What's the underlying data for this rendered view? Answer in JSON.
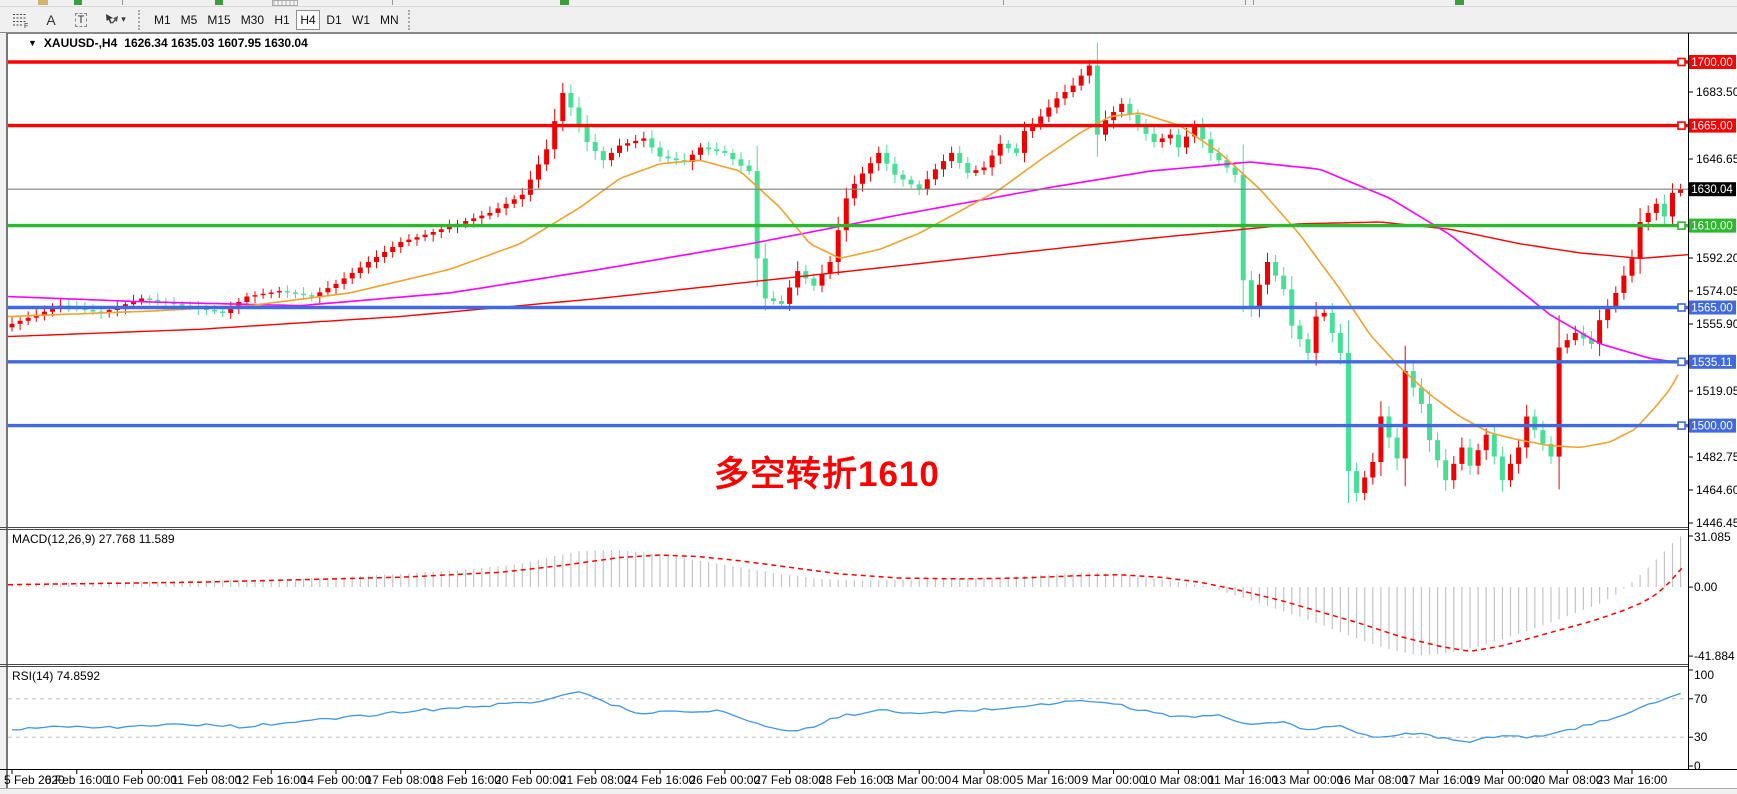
{
  "icons": {
    "dropdown": "▼",
    "caret": "▾",
    "tool_a": "A",
    "tool_t": "T",
    "tool_f": "F"
  },
  "toolbar": {
    "tools": [
      "fibonacci-tool",
      "arrow-text-tool",
      "text-tool",
      "arrows-tool"
    ],
    "timeframes": [
      "M1",
      "M5",
      "M15",
      "M30",
      "H1",
      "H4",
      "D1",
      "W1",
      "MN"
    ],
    "active_timeframe": "H4"
  },
  "chart": {
    "symbol_period": "XAUUSD-,H4",
    "ohlc": "1626.34 1635.03 1607.95 1630.04",
    "annotation": "多空转折1610"
  },
  "chart_data": {
    "type": "candlestick",
    "symbol": "XAUUSD",
    "timeframe": "H4",
    "ohlc_display": {
      "open": 1626.34,
      "high": 1635.03,
      "low": 1607.95,
      "close": 1630.04
    },
    "y_range": [
      1444.25,
      1715.4
    ],
    "y_ticks": [
      {
        "label": "1683.50",
        "price": 1683.5
      },
      {
        "label": "1646.65",
        "price": 1646.65
      },
      {
        "label": "1592.20",
        "price": 1592.2
      },
      {
        "label": "1574.05",
        "price": 1574.05
      },
      {
        "label": "1555.90",
        "price": 1555.9
      },
      {
        "label": "1519.05",
        "price": 1519.05
      },
      {
        "label": "1482.75",
        "price": 1482.75
      },
      {
        "label": "1464.60",
        "price": 1464.6
      },
      {
        "label": "1446.45",
        "price": 1446.45
      }
    ],
    "hlines": [
      {
        "price": 1700.0,
        "label": "1700.00",
        "color": "red"
      },
      {
        "price": 1665.0,
        "label": "1665.00",
        "color": "red"
      },
      {
        "price": 1610.0,
        "label": "1610.00",
        "color": "green"
      },
      {
        "price": 1565.0,
        "label": "1565.00",
        "color": "blue"
      },
      {
        "price": 1535.11,
        "label": "1535.11",
        "color": "blue"
      },
      {
        "price": 1500.0,
        "label": "1500.00",
        "color": "blue"
      }
    ],
    "current_price": {
      "price": 1630.04,
      "label": "1630.04"
    },
    "x_labels": [
      "5 Feb 2020",
      "6 Feb 16:00",
      "10 Feb 00:00",
      "11 Feb 08:00",
      "12 Feb 16:00",
      "14 Feb 00:00",
      "17 Feb 08:00",
      "18 Feb 16:00",
      "20 Feb 00:00",
      "21 Feb 08:00",
      "24 Feb 16:00",
      "26 Feb 00:00",
      "27 Feb 08:00",
      "28 Feb 16:00",
      "3 Mar 00:00",
      "4 Mar 08:00",
      "5 Mar 16:00",
      "9 Mar 00:00",
      "10 Mar 08:00",
      "11 Mar 16:00",
      "13 Mar 00:00",
      "16 Mar 08:00",
      "17 Mar 16:00",
      "19 Mar 00:00",
      "20 Mar 08:00",
      "23 Mar 16:00"
    ],
    "bars_per_label": 8,
    "bar_count": 207,
    "close_path": [
      [
        0,
        1556
      ],
      [
        6,
        1566
      ],
      [
        11,
        1562
      ],
      [
        16,
        1570
      ],
      [
        21,
        1566
      ],
      [
        26,
        1562
      ],
      [
        29,
        1571
      ],
      [
        33,
        1574
      ],
      [
        37,
        1571
      ],
      [
        40,
        1578
      ],
      [
        44,
        1590
      ],
      [
        48,
        1601
      ],
      [
        51,
        1605
      ],
      [
        55,
        1611
      ],
      [
        59,
        1617
      ],
      [
        63,
        1627
      ],
      [
        66,
        1652
      ],
      [
        68,
        1683
      ],
      [
        69,
        1675
      ],
      [
        71,
        1656
      ],
      [
        73,
        1646
      ],
      [
        75,
        1654
      ],
      [
        78,
        1658
      ],
      [
        80,
        1648
      ],
      [
        83,
        1645
      ],
      [
        85,
        1653
      ],
      [
        88,
        1650
      ],
      [
        90,
        1643
      ],
      [
        91,
        1640
      ],
      [
        92,
        1592
      ],
      [
        93,
        1570
      ],
      [
        95,
        1567
      ],
      [
        97,
        1585
      ],
      [
        99,
        1577
      ],
      [
        101,
        1590
      ],
      [
        103,
        1625
      ],
      [
        104,
        1633
      ],
      [
        107,
        1650
      ],
      [
        109,
        1638
      ],
      [
        112,
        1630
      ],
      [
        114,
        1641
      ],
      [
        116,
        1650
      ],
      [
        118,
        1639
      ],
      [
        120,
        1642
      ],
      [
        122,
        1655
      ],
      [
        124,
        1650
      ],
      [
        125,
        1662
      ],
      [
        127,
        1670
      ],
      [
        129,
        1680
      ],
      [
        131,
        1687
      ],
      [
        133,
        1698
      ],
      [
        134,
        1660
      ],
      [
        135,
        1668
      ],
      [
        137,
        1677
      ],
      [
        139,
        1665
      ],
      [
        141,
        1656
      ],
      [
        143,
        1660
      ],
      [
        144,
        1653
      ],
      [
        146,
        1665
      ],
      [
        148,
        1650
      ],
      [
        150,
        1642
      ],
      [
        151,
        1638
      ],
      [
        152,
        1580
      ],
      [
        153,
        1565
      ],
      [
        155,
        1590
      ],
      [
        157,
        1575
      ],
      [
        158,
        1555
      ],
      [
        160,
        1540
      ],
      [
        161,
        1560
      ],
      [
        162,
        1562
      ],
      [
        164,
        1540
      ],
      [
        165,
        1475
      ],
      [
        166,
        1463
      ],
      [
        168,
        1480
      ],
      [
        169,
        1505
      ],
      [
        171,
        1482
      ],
      [
        172,
        1530
      ],
      [
        174,
        1512
      ],
      [
        175,
        1492
      ],
      [
        177,
        1470
      ],
      [
        179,
        1488
      ],
      [
        180,
        1478
      ],
      [
        182,
        1495
      ],
      [
        183,
        1483
      ],
      [
        184,
        1470
      ],
      [
        186,
        1488
      ],
      [
        187,
        1505
      ],
      [
        189,
        1490
      ],
      [
        190,
        1483
      ],
      [
        191,
        1543
      ],
      [
        193,
        1551
      ],
      [
        195,
        1545
      ],
      [
        196,
        1558
      ],
      [
        198,
        1573
      ],
      [
        200,
        1592
      ],
      [
        201,
        1612
      ],
      [
        203,
        1622
      ],
      [
        204,
        1615
      ],
      [
        205,
        1628
      ],
      [
        206,
        1630.04
      ]
    ],
    "ma_fast": [
      [
        8,
        1560
      ],
      [
        150,
        1563
      ],
      [
        250,
        1566
      ],
      [
        350,
        1573
      ],
      [
        450,
        1586
      ],
      [
        520,
        1600
      ],
      [
        580,
        1620
      ],
      [
        620,
        1636
      ],
      [
        660,
        1644
      ],
      [
        700,
        1646
      ],
      [
        740,
        1640
      ],
      [
        780,
        1620
      ],
      [
        810,
        1600
      ],
      [
        840,
        1592
      ],
      [
        880,
        1597
      ],
      [
        920,
        1606
      ],
      [
        960,
        1618
      ],
      [
        1000,
        1630
      ],
      [
        1040,
        1646
      ],
      [
        1080,
        1661
      ],
      [
        1110,
        1670
      ],
      [
        1140,
        1672
      ],
      [
        1180,
        1665
      ],
      [
        1220,
        1650
      ],
      [
        1260,
        1630
      ],
      [
        1300,
        1605
      ],
      [
        1340,
        1575
      ],
      [
        1370,
        1550
      ],
      [
        1400,
        1532
      ],
      [
        1430,
        1517
      ],
      [
        1460,
        1505
      ],
      [
        1490,
        1496
      ],
      [
        1520,
        1492
      ],
      [
        1550,
        1489
      ],
      [
        1580,
        1488
      ],
      [
        1610,
        1491
      ],
      [
        1635,
        1498
      ],
      [
        1655,
        1510
      ],
      [
        1670,
        1520
      ],
      [
        1682,
        1532
      ]
    ],
    "ma_mid": [
      [
        8,
        1571
      ],
      [
        150,
        1568
      ],
      [
        300,
        1566
      ],
      [
        450,
        1573
      ],
      [
        600,
        1586
      ],
      [
        750,
        1600
      ],
      [
        900,
        1616
      ],
      [
        1050,
        1631
      ],
      [
        1150,
        1640
      ],
      [
        1250,
        1645
      ],
      [
        1320,
        1641
      ],
      [
        1390,
        1625
      ],
      [
        1450,
        1605
      ],
      [
        1500,
        1583
      ],
      [
        1550,
        1561
      ],
      [
        1600,
        1545
      ],
      [
        1650,
        1537
      ],
      [
        1688,
        1534
      ]
    ],
    "ma_slow": [
      [
        8,
        1549
      ],
      [
        200,
        1553
      ],
      [
        400,
        1560
      ],
      [
        600,
        1570
      ],
      [
        800,
        1582
      ],
      [
        1000,
        1594
      ],
      [
        1150,
        1603
      ],
      [
        1300,
        1611
      ],
      [
        1380,
        1612
      ],
      [
        1450,
        1608
      ],
      [
        1520,
        1600
      ],
      [
        1580,
        1595
      ],
      [
        1640,
        1592
      ],
      [
        1688,
        1594
      ]
    ],
    "macd": {
      "label": "MACD(12,26,9) 27.768 11.589",
      "range": [
        -46.7,
        34.7
      ],
      "ticks": [
        {
          "label": "31.085",
          "v": 31.085
        },
        {
          "label": "0.00",
          "v": 0
        },
        {
          "label": "-41.884",
          "v": -41.884
        }
      ],
      "hist": [
        [
          8,
          2
        ],
        [
          100,
          3
        ],
        [
          200,
          4
        ],
        [
          300,
          5
        ],
        [
          400,
          8
        ],
        [
          470,
          11
        ],
        [
          520,
          14
        ],
        [
          555,
          19
        ],
        [
          580,
          22
        ],
        [
          620,
          22.5
        ],
        [
          660,
          20
        ],
        [
          700,
          16
        ],
        [
          740,
          12
        ],
        [
          780,
          8
        ],
        [
          820,
          5
        ],
        [
          860,
          4
        ],
        [
          900,
          4.5
        ],
        [
          940,
          5
        ],
        [
          980,
          5.5
        ],
        [
          1020,
          6.5
        ],
        [
          1060,
          8
        ],
        [
          1090,
          9
        ],
        [
          1120,
          8
        ],
        [
          1160,
          5
        ],
        [
          1190,
          2
        ],
        [
          1210,
          0
        ],
        [
          1240,
          -6
        ],
        [
          1270,
          -12
        ],
        [
          1300,
          -18
        ],
        [
          1330,
          -25
        ],
        [
          1360,
          -32
        ],
        [
          1390,
          -38
        ],
        [
          1420,
          -41.5
        ],
        [
          1450,
          -40
        ],
        [
          1480,
          -36
        ],
        [
          1510,
          -30
        ],
        [
          1540,
          -24
        ],
        [
          1570,
          -17
        ],
        [
          1600,
          -10
        ],
        [
          1615,
          -5
        ],
        [
          1630,
          2
        ],
        [
          1645,
          10
        ],
        [
          1655,
          16
        ],
        [
          1665,
          22
        ],
        [
          1673,
          27
        ],
        [
          1681,
          31
        ]
      ],
      "signal": [
        [
          8,
          1.5
        ],
        [
          200,
          3
        ],
        [
          400,
          6
        ],
        [
          500,
          9
        ],
        [
          560,
          13
        ],
        [
          620,
          18
        ],
        [
          660,
          19.5
        ],
        [
          700,
          18.5
        ],
        [
          740,
          16
        ],
        [
          790,
          12
        ],
        [
          840,
          8
        ],
        [
          900,
          5.5
        ],
        [
          960,
          5
        ],
        [
          1020,
          5.5
        ],
        [
          1080,
          7
        ],
        [
          1120,
          7.5
        ],
        [
          1160,
          6
        ],
        [
          1200,
          3
        ],
        [
          1240,
          -2
        ],
        [
          1280,
          -8
        ],
        [
          1320,
          -15
        ],
        [
          1360,
          -22
        ],
        [
          1400,
          -30
        ],
        [
          1440,
          -36
        ],
        [
          1470,
          -39
        ],
        [
          1500,
          -36
        ],
        [
          1530,
          -31
        ],
        [
          1560,
          -26
        ],
        [
          1590,
          -21
        ],
        [
          1620,
          -15
        ],
        [
          1640,
          -10
        ],
        [
          1655,
          -5
        ],
        [
          1668,
          2
        ],
        [
          1682,
          11.6
        ]
      ]
    },
    "rsi": {
      "label": "RSI(14) 74.8592",
      "ticks": [
        {
          "label": "100",
          "v": 100
        },
        {
          "label": "70",
          "v": 70
        },
        {
          "label": "30",
          "v": 30
        },
        {
          "label": "0",
          "v": 0
        }
      ],
      "levels": [
        70,
        30
      ],
      "path": [
        [
          8,
          38
        ],
        [
          60,
          42
        ],
        [
          120,
          40
        ],
        [
          180,
          44
        ],
        [
          240,
          41
        ],
        [
          300,
          46
        ],
        [
          360,
          52
        ],
        [
          420,
          58
        ],
        [
          480,
          62
        ],
        [
          540,
          68
        ],
        [
          575,
          78
        ],
        [
          610,
          65
        ],
        [
          640,
          55
        ],
        [
          680,
          57
        ],
        [
          720,
          58
        ],
        [
          760,
          42
        ],
        [
          800,
          36
        ],
        [
          840,
          52
        ],
        [
          880,
          58
        ],
        [
          920,
          54
        ],
        [
          960,
          57
        ],
        [
          1000,
          60
        ],
        [
          1040,
          64
        ],
        [
          1080,
          68
        ],
        [
          1110,
          66
        ],
        [
          1140,
          58
        ],
        [
          1180,
          51
        ],
        [
          1215,
          53
        ],
        [
          1250,
          43
        ],
        [
          1280,
          46
        ],
        [
          1310,
          37
        ],
        [
          1340,
          43
        ],
        [
          1375,
          28
        ],
        [
          1410,
          35
        ],
        [
          1440,
          30
        ],
        [
          1470,
          26
        ],
        [
          1500,
          32
        ],
        [
          1530,
          29
        ],
        [
          1560,
          36
        ],
        [
          1590,
          43
        ],
        [
          1610,
          49
        ],
        [
          1630,
          57
        ],
        [
          1650,
          64
        ],
        [
          1665,
          70
        ],
        [
          1682,
          75
        ]
      ]
    },
    "colors": {
      "up": "#f20000",
      "down": "#45e095",
      "ma_fast": "#f0a32e",
      "ma_mid": "#ff00ff",
      "ma_slow": "#ff0000",
      "red": "#ff0000",
      "green": "#2db82d",
      "blue": "#4169e1",
      "current": "#808080",
      "current_badge": "#000000",
      "hist": "#c4c4c4",
      "signal": "#ff0000",
      "rsi": "#3f97e6"
    },
    "legend_position": "none",
    "grid": false
  }
}
